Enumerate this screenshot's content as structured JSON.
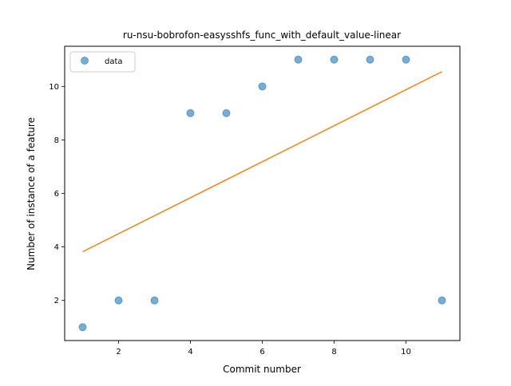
{
  "chart_data": {
    "type": "scatter",
    "title": "ru-nsu-bobrofon-easysshfs_func_with_default_value-linear",
    "xlabel": "Commit number",
    "ylabel": "Number of instance of a feature",
    "xlim": [
      0.5,
      11.5
    ],
    "ylim": [
      0.5,
      11.5
    ],
    "xticks": [
      2,
      4,
      6,
      8,
      10
    ],
    "yticks": [
      2,
      4,
      6,
      8,
      10
    ],
    "grid": false,
    "legend_position": "upper-left",
    "series": [
      {
        "name": "data",
        "kind": "scatter",
        "color": "#1f77b4",
        "x": [
          1,
          2,
          3,
          4,
          5,
          6,
          7,
          8,
          9,
          10,
          11
        ],
        "y": [
          1,
          2,
          2,
          9,
          9,
          10,
          11,
          11,
          11,
          11,
          2
        ]
      },
      {
        "kind": "line",
        "color": "#ff7f0e",
        "x": [
          1,
          11
        ],
        "y": [
          3.82,
          10.55
        ]
      }
    ]
  }
}
